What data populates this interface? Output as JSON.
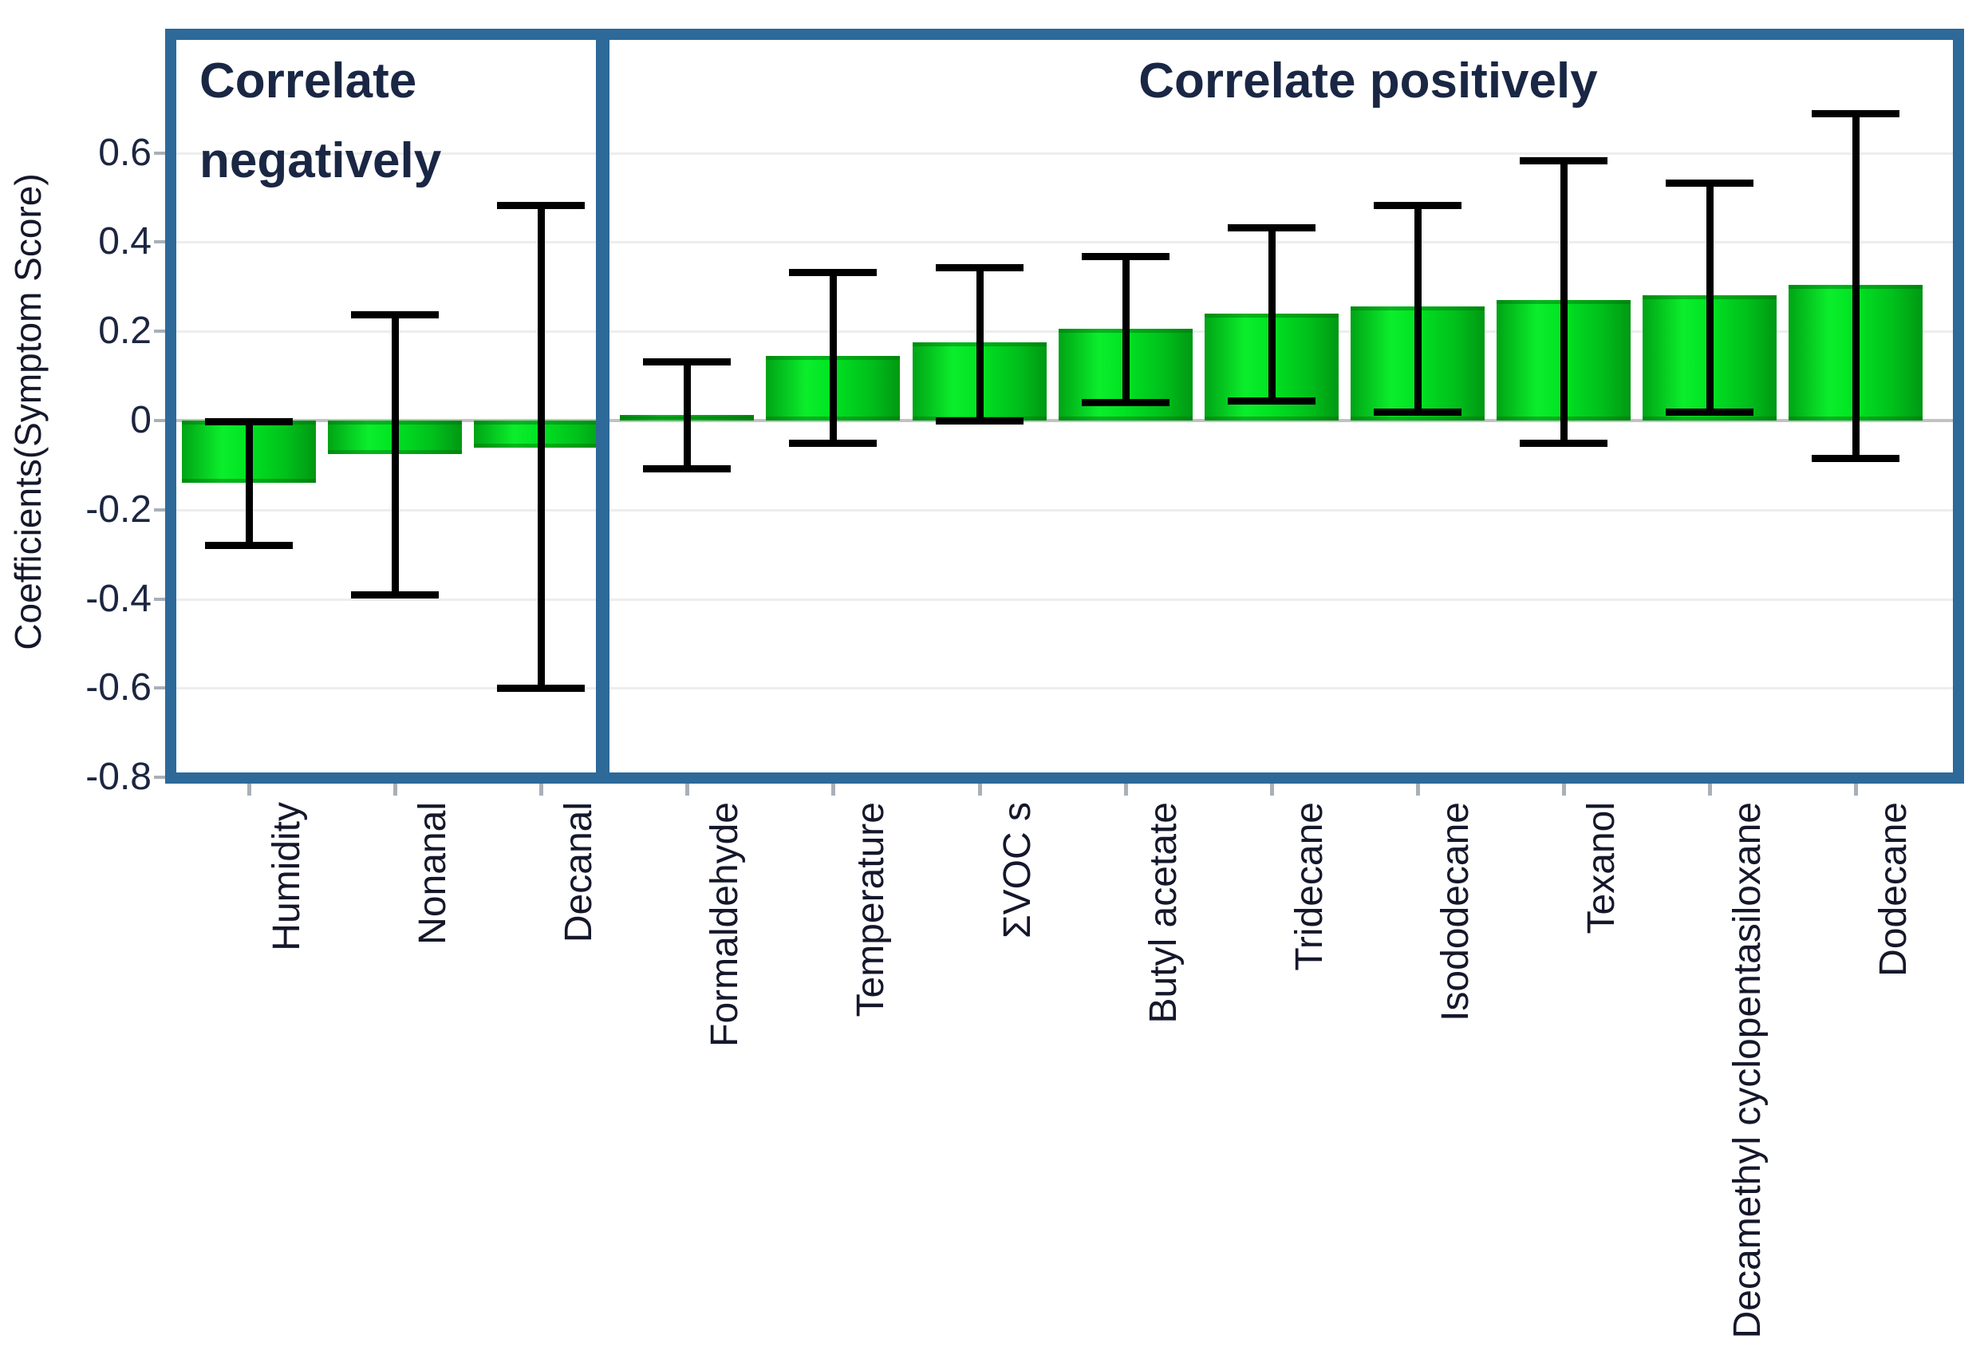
{
  "page": {
    "background": "#ffffff"
  },
  "chart_data": {
    "type": "bar",
    "title": "",
    "subtitle": "",
    "ylabel": "Coefficients(Symptom Score)",
    "xlabel": "",
    "ylim": [
      -0.8,
      0.88
    ],
    "yticks": [
      0.6,
      0.4,
      0.2,
      0,
      -0.2,
      -0.4,
      -0.6,
      -0.8
    ],
    "grid": "horizontal-light",
    "legend": "none",
    "error_bars": "confidence-interval, black caps",
    "groups": [
      {
        "id": "negative",
        "label": "Correlate negatively"
      },
      {
        "id": "positive",
        "label": "Correlate positively"
      }
    ],
    "bars": [
      {
        "label": "Humidity",
        "group": "negative",
        "value": -0.14,
        "ci_upper": 0.005,
        "ci_lower": -0.285
      },
      {
        "label": "Nonanal",
        "group": "negative",
        "value": -0.075,
        "ci_upper": 0.245,
        "ci_lower": -0.395
      },
      {
        "label": "Decanal",
        "group": "negative",
        "value": -0.06,
        "ci_upper": 0.49,
        "ci_lower": -0.605
      },
      {
        "label": "Formaldehyde",
        "group": "positive",
        "value": 0.012,
        "ci_upper": 0.14,
        "ci_lower": -0.112
      },
      {
        "label": "Temperature",
        "group": "positive",
        "value": 0.145,
        "ci_upper": 0.34,
        "ci_lower": -0.055
      },
      {
        "label": "ΣVOC s",
        "group": "positive",
        "value": 0.175,
        "ci_upper": 0.35,
        "ci_lower": -0.005
      },
      {
        "label": "Butyl acetate",
        "group": "positive",
        "value": 0.205,
        "ci_upper": 0.375,
        "ci_lower": 0.035
      },
      {
        "label": "Tridecane",
        "group": "positive",
        "value": 0.24,
        "ci_upper": 0.44,
        "ci_lower": 0.04
      },
      {
        "label": "Isododecane",
        "group": "positive",
        "value": 0.255,
        "ci_upper": 0.49,
        "ci_lower": 0.015
      },
      {
        "label": "Texanol",
        "group": "positive",
        "value": 0.27,
        "ci_upper": 0.59,
        "ci_lower": -0.055
      },
      {
        "label": "Decamethyl cyclopentasiloxane",
        "group": "positive",
        "value": 0.28,
        "ci_upper": 0.54,
        "ci_lower": 0.015
      },
      {
        "label": "Dodecane",
        "group": "positive",
        "value": 0.305,
        "ci_upper": 0.695,
        "ci_lower": -0.09
      }
    ],
    "colors": {
      "bar_main": "#00d81f",
      "bar_light": "#0bee2c",
      "bar_dark": "#009812",
      "frame": "#2d6999",
      "gridline": "#ededed",
      "zero_line": "#c2c2c2",
      "error_bar": "#000000",
      "tick_text": "#1c2540",
      "title_text": "#1a2744",
      "tick_mark": "#a8b0b8"
    }
  }
}
